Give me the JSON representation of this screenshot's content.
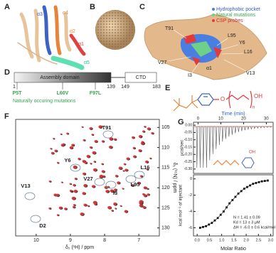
{
  "panels": {
    "a": {
      "label": "A",
      "helices": [
        "α1",
        "α2",
        "α3",
        "α4",
        "α5"
      ]
    },
    "b": {
      "label": "B"
    },
    "c": {
      "label": "C",
      "legend": [
        "Hydrophobic pocket",
        "Natural mutations",
        "CSP probes"
      ],
      "residues": [
        "T91",
        "L95",
        "Y6",
        "L16",
        "V27",
        "I3",
        "V13",
        "α1"
      ]
    },
    "d": {
      "label": "D",
      "domains": [
        "Assembly domain",
        "CTD"
      ],
      "positions": [
        "1",
        "139",
        "149",
        "183"
      ],
      "mutations": [
        "P5T",
        "L60V",
        "F97L"
      ],
      "caption": "Naturally occuring mutations"
    },
    "e": {
      "label": "E",
      "atoms": [
        "O",
        "OH"
      ],
      "repeat": "n"
    },
    "f": {
      "label": "F",
      "x_label": "δ₂ (¹H) / ppm",
      "y_label": "δ₁ (¹⁵N) / ppm",
      "xlim": [
        10.6,
        6.4
      ],
      "xticks": [
        10,
        9,
        8,
        7
      ],
      "ylim": [
        103,
        132
      ],
      "yticks": [
        105,
        110,
        115,
        120,
        125,
        130
      ],
      "peaks": [
        "T91",
        "Y6",
        "V27",
        "L16",
        "L95",
        "I3",
        "V13",
        "D2"
      ]
    },
    "g": {
      "label": "G",
      "time_label": "Time (min)",
      "time_lim": [
        -2,
        33
      ],
      "time_ticks": [
        0,
        10,
        20,
        30
      ],
      "power_label": "μcal/sec",
      "power_lim": [
        -0.33,
        0.02
      ],
      "power_ticks": [
        {
          "value": 0,
          "label": "0.00"
        },
        {
          "value": -0.05,
          "label": "-0.05"
        },
        {
          "value": -0.1,
          "label": "-0.10"
        },
        {
          "value": -0.15,
          "label": "-0.15"
        },
        {
          "value": -0.2,
          "label": "-0.20"
        },
        {
          "value": -0.25,
          "label": "-0.25"
        },
        {
          "value": -0.3,
          "label": "-0.30"
        }
      ],
      "heat_label": "kcal mol⁻¹ of injectant",
      "heat_lim": [
        -7,
        0.5
      ],
      "heat_ticks": [
        0,
        -2,
        -4,
        -6
      ],
      "ratio_label": "Molar Ratio",
      "ratio_lim": [
        -0.15,
        3.1
      ],
      "ratio_ticks": [
        {
          "value": 0,
          "label": "0.0"
        },
        0.5,
        {
          "value": 1,
          "label": "1.0"
        },
        1.5,
        {
          "value": 2,
          "label": "2.0"
        },
        2.5,
        {
          "value": 3,
          "label": "3.0"
        }
      ],
      "ligand_atom": "OH",
      "fit": [
        "N = 1.41 ± 0.09",
        "Kd = 13 ± 3 μM",
        "ΔH = -6.0 ± 0.6 kcal/mol"
      ],
      "itc": {
        "x": [
          0.12,
          0.24,
          0.36,
          0.48,
          0.6,
          0.72,
          0.84,
          0.96,
          1.08,
          1.2,
          1.32,
          1.44,
          1.56,
          1.68,
          1.8,
          1.92,
          2.04,
          2.16,
          2.28,
          2.4,
          2.52,
          2.64,
          2.76,
          2.88
        ],
        "y": [
          -6.0,
          -5.9,
          -5.8,
          -5.6,
          -5.4,
          -5.1,
          -4.8,
          -4.4,
          -4.0,
          -3.5,
          -3.0,
          -2.6,
          -2.2,
          -1.8,
          -1.5,
          -1.2,
          -1.0,
          -0.8,
          -0.6,
          -0.5,
          -0.4,
          -0.3,
          -0.25,
          -0.2
        ]
      }
    }
  }
}
